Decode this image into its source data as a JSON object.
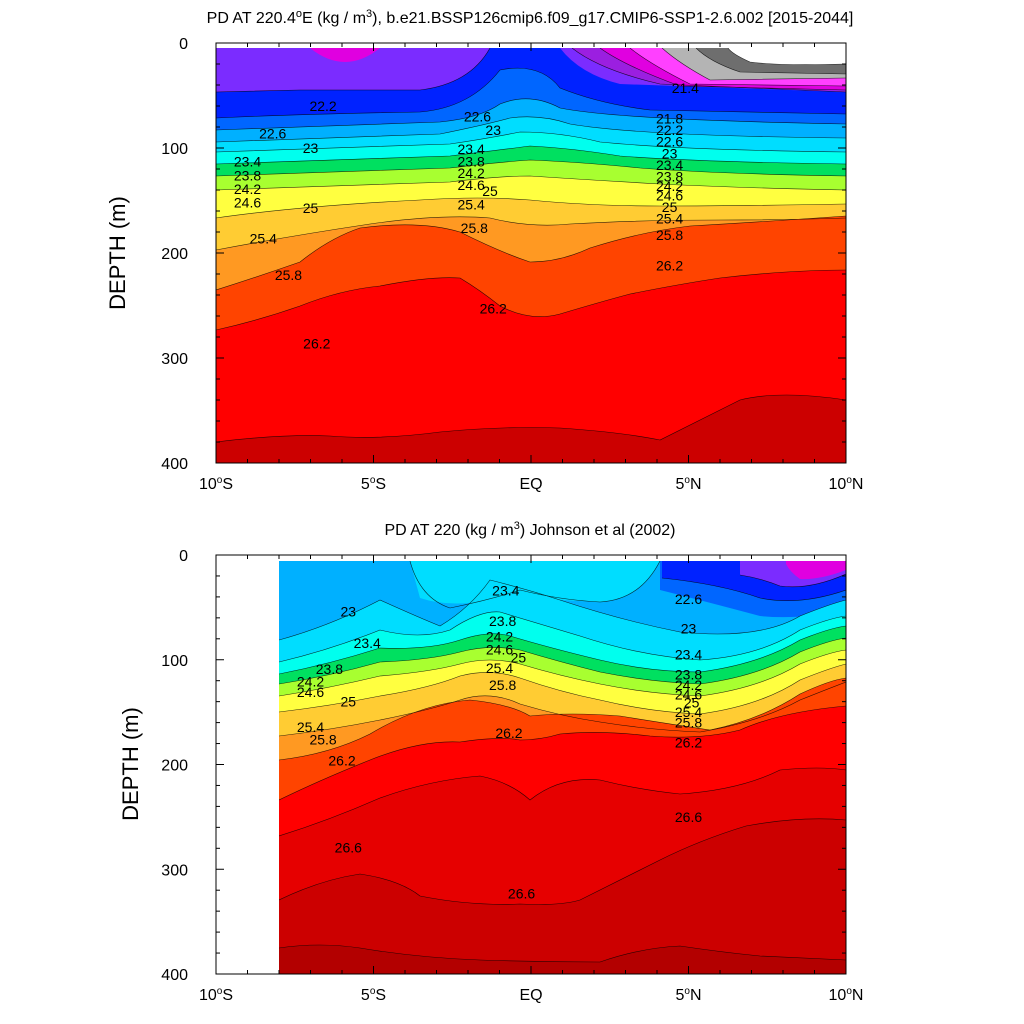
{
  "colors": {
    "violet": "#7b2cff",
    "purple": "#9b1fe0",
    "magenta": "#e000e0",
    "pink": "#ff40ff",
    "darkgray": "#6e6e6e",
    "lightgray": "#b4b4b4",
    "blue": "#0022ff",
    "medblue": "#0066ff",
    "skyblue": "#00b0ff",
    "cyan": "#00ddff",
    "aqua": "#00ffee",
    "green": "#00e060",
    "lime": "#a8ff30",
    "yellow": "#ffff40",
    "gold": "#ffcc33",
    "orange": "#ff9922",
    "redorange": "#ff4400",
    "red": "#ff0000",
    "darkred": "#cc0000"
  },
  "chart_data": [
    {
      "type": "contour",
      "title": "PD AT 220.4°E (kg / m³), b.e21.BSSP126cmip6.f09_g17.CMIP6-SSP1-2.6.002 [2015-2044]",
      "title_parts": {
        "a": "PD AT 220.4",
        "deg": "o",
        "b": "E (kg / m",
        "sup": "3",
        "c": "), b.e21.BSSP126cmip6.f09_g17.CMIP6-SSP1-2.6.002 [2015-2044]"
      },
      "xlabel": "",
      "ylabel": "DEPTH (m)",
      "xlim": [
        -10,
        10
      ],
      "ylim": [
        400,
        0
      ],
      "x_ticks": [
        {
          "value": -10,
          "num": "10",
          "deg": "o",
          "hemi": "S"
        },
        {
          "value": -5,
          "num": "5",
          "deg": "o",
          "hemi": "S"
        },
        {
          "value": 0,
          "num": "EQ",
          "deg": "",
          "hemi": ""
        },
        {
          "value": 5,
          "num": "5",
          "deg": "o",
          "hemi": "N"
        },
        {
          "value": 10,
          "num": "10",
          "deg": "o",
          "hemi": "N"
        }
      ],
      "y_ticks": [
        "0",
        "100",
        "200",
        "300",
        "400"
      ],
      "contour_labels": [
        {
          "x": -6.6,
          "y": 60,
          "text": "22.2"
        },
        {
          "x": -8.2,
          "y": 86,
          "text": "22.6"
        },
        {
          "x": -7.0,
          "y": 100,
          "text": "23"
        },
        {
          "x": -9.0,
          "y": 113,
          "text": "23.4"
        },
        {
          "x": -9.0,
          "y": 126,
          "text": "23.8"
        },
        {
          "x": -9.0,
          "y": 139,
          "text": "24.2"
        },
        {
          "x": -9.0,
          "y": 152,
          "text": "24.6"
        },
        {
          "x": -7.0,
          "y": 157,
          "text": "25"
        },
        {
          "x": -8.5,
          "y": 186,
          "text": "25.4"
        },
        {
          "x": -7.7,
          "y": 221,
          "text": "25.8"
        },
        {
          "x": -6.8,
          "y": 286,
          "text": "26.2"
        },
        {
          "x": -1.7,
          "y": 70,
          "text": "22.6"
        },
        {
          "x": -1.2,
          "y": 83,
          "text": "23"
        },
        {
          "x": -1.9,
          "y": 101,
          "text": "23.4"
        },
        {
          "x": -1.9,
          "y": 113,
          "text": "23.8"
        },
        {
          "x": -1.9,
          "y": 124,
          "text": "24.2"
        },
        {
          "x": -1.9,
          "y": 135,
          "text": "24.6"
        },
        {
          "x": -1.3,
          "y": 141,
          "text": "25"
        },
        {
          "x": -1.9,
          "y": 154,
          "text": "25.4"
        },
        {
          "x": -1.8,
          "y": 176,
          "text": "25.8"
        },
        {
          "x": -1.2,
          "y": 253,
          "text": "26.2"
        },
        {
          "x": 4.9,
          "y": 43,
          "text": "21.4"
        },
        {
          "x": 4.4,
          "y": 72,
          "text": "21.8"
        },
        {
          "x": 4.4,
          "y": 83,
          "text": "22.2"
        },
        {
          "x": 4.4,
          "y": 94,
          "text": "22.6"
        },
        {
          "x": 4.4,
          "y": 105,
          "text": "23"
        },
        {
          "x": 4.4,
          "y": 116,
          "text": "23.4"
        },
        {
          "x": 4.4,
          "y": 127,
          "text": "23.8"
        },
        {
          "x": 4.4,
          "y": 136,
          "text": "24.2"
        },
        {
          "x": 4.4,
          "y": 145,
          "text": "24.6"
        },
        {
          "x": 4.4,
          "y": 156,
          "text": "25"
        },
        {
          "x": 4.4,
          "y": 167,
          "text": "25.4"
        },
        {
          "x": 4.4,
          "y": 183,
          "text": "25.8"
        },
        {
          "x": 4.4,
          "y": 212,
          "text": "26.2"
        }
      ]
    },
    {
      "type": "contour",
      "title": "PD AT 220 (kg / m³) Johnson et al (2002)",
      "title_parts": {
        "a": "PD AT 220 (kg / m",
        "sup": "3",
        "c": ") Johnson et al (2002)"
      },
      "xlabel": "",
      "ylabel": "DEPTH (m)",
      "xlim": [
        -10,
        10
      ],
      "ylim": [
        400,
        0
      ],
      "x_ticks": [
        {
          "value": -10,
          "num": "10",
          "deg": "o",
          "hemi": "S"
        },
        {
          "value": -5,
          "num": "5",
          "deg": "o",
          "hemi": "S"
        },
        {
          "value": 0,
          "num": "EQ",
          "deg": "",
          "hemi": ""
        },
        {
          "value": 5,
          "num": "5",
          "deg": "o",
          "hemi": "N"
        },
        {
          "value": 10,
          "num": "10",
          "deg": "o",
          "hemi": "N"
        }
      ],
      "y_ticks": [
        "0",
        "100",
        "200",
        "300",
        "400"
      ],
      "contour_labels": [
        {
          "x": -5.8,
          "y": 54,
          "text": "23"
        },
        {
          "x": -5.2,
          "y": 84,
          "text": "23.4"
        },
        {
          "x": -6.4,
          "y": 109,
          "text": "23.8"
        },
        {
          "x": -7.0,
          "y": 121,
          "text": "24.2"
        },
        {
          "x": -7.0,
          "y": 131,
          "text": "24.6"
        },
        {
          "x": -5.8,
          "y": 140,
          "text": "25"
        },
        {
          "x": -7.0,
          "y": 164,
          "text": "25.4"
        },
        {
          "x": -6.6,
          "y": 176,
          "text": "25.8"
        },
        {
          "x": -6.0,
          "y": 196,
          "text": "26.2"
        },
        {
          "x": -0.8,
          "y": 34,
          "text": "23.4"
        },
        {
          "x": -0.9,
          "y": 63,
          "text": "23.8"
        },
        {
          "x": -1.0,
          "y": 78,
          "text": "24.2"
        },
        {
          "x": -1.0,
          "y": 90,
          "text": "24.6"
        },
        {
          "x": -0.4,
          "y": 98,
          "text": "25"
        },
        {
          "x": -1.0,
          "y": 108,
          "text": "25.4"
        },
        {
          "x": -0.9,
          "y": 124,
          "text": "25.8"
        },
        {
          "x": -0.7,
          "y": 170,
          "text": "26.2"
        },
        {
          "x": 5.0,
          "y": 42,
          "text": "22.6"
        },
        {
          "x": 5.0,
          "y": 70,
          "text": "23"
        },
        {
          "x": 5.0,
          "y": 95,
          "text": "23.4"
        },
        {
          "x": 5.0,
          "y": 114,
          "text": "23.8"
        },
        {
          "x": 5.0,
          "y": 124,
          "text": "24.2"
        },
        {
          "x": 5.0,
          "y": 133,
          "text": "24.6"
        },
        {
          "x": 5.1,
          "y": 141,
          "text": "25"
        },
        {
          "x": 5.0,
          "y": 150,
          "text": "25.4"
        },
        {
          "x": 5.0,
          "y": 160,
          "text": "25.8"
        },
        {
          "x": 5.0,
          "y": 179,
          "text": "26.2"
        },
        {
          "x": -5.8,
          "y": 279,
          "text": "26.6"
        },
        {
          "x": -0.3,
          "y": 323,
          "text": "26.6"
        },
        {
          "x": 5.0,
          "y": 250,
          "text": "26.6"
        }
      ]
    }
  ]
}
